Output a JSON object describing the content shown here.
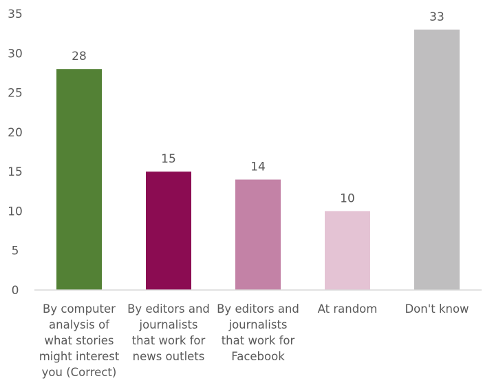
{
  "chart_data": {
    "type": "bar",
    "title": "",
    "xlabel": "",
    "ylabel": "",
    "ylim": [
      0,
      35
    ],
    "yticks": [
      0,
      5,
      10,
      15,
      20,
      25,
      30,
      35
    ],
    "grid": false,
    "legend": "none",
    "categories": [
      "By computer analysis of what stories might interest you (Correct)",
      "By editors and journalists that work for news outlets",
      "By editors and journalists that work for Facebook",
      "At random",
      "Don't know"
    ],
    "category_lines": [
      [
        "By computer",
        "analysis of",
        "what stories",
        "might interest",
        "you (Correct)"
      ],
      [
        "By editors and",
        "journalists",
        "that work for",
        "news outlets"
      ],
      [
        "By editors and",
        "journalists",
        "that work for",
        "Facebook"
      ],
      [
        "At random"
      ],
      [
        "Don't know"
      ]
    ],
    "values": [
      28,
      15,
      14,
      10,
      33
    ],
    "data_labels": [
      "28",
      "15",
      "14",
      "10",
      "33"
    ],
    "colors": [
      "#538135",
      "#8b0c52",
      "#c382a6",
      "#e4c3d4",
      "#bfbebf"
    ]
  }
}
